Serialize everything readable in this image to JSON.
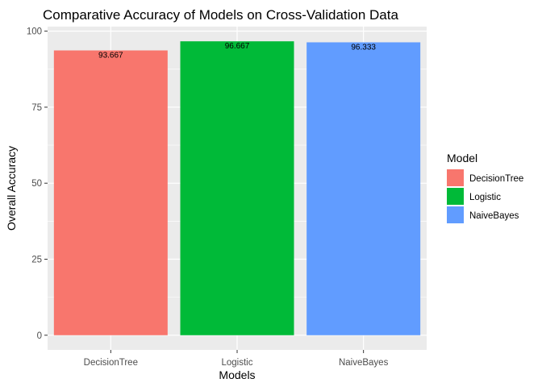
{
  "chart_data": {
    "type": "bar",
    "title": "Comparative Accuracy of Models on Cross-Validation Data",
    "xlabel": "Models",
    "ylabel": "Overall Accuracy",
    "categories": [
      "DecisionTree",
      "Logistic",
      "NaiveBayes"
    ],
    "values": [
      93.667,
      96.667,
      96.333
    ],
    "data_labels": [
      "93.667",
      "96.667",
      "96.333"
    ],
    "colors": [
      "#F8766D",
      "#00BA38",
      "#619CFF"
    ],
    "ylim": [
      -4.8333,
      101.5
    ],
    "yticks": [
      0,
      25,
      50,
      75,
      100
    ],
    "ytick_labels": [
      "0",
      "25",
      "50",
      "75",
      "100"
    ],
    "grid": true,
    "legend": {
      "title": "Model",
      "position": "right",
      "entries": [
        "DecisionTree",
        "Logistic",
        "NaiveBayes"
      ]
    },
    "panel_background": "#EBEBEB",
    "grid_color": "#FFFFFF"
  }
}
